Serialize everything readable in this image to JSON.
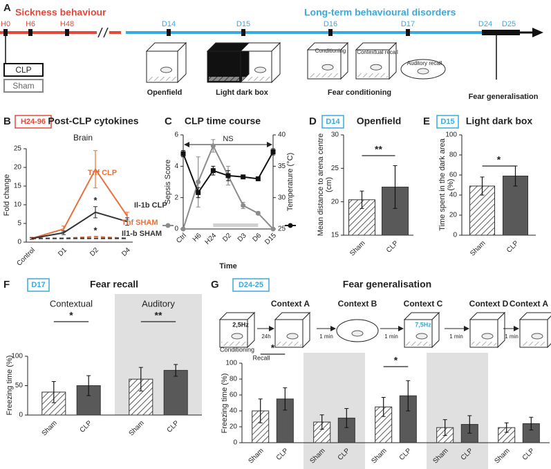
{
  "figure_a": {
    "label": "A",
    "phases": [
      "Sickness behaviour",
      "Long-term behavioural disorders"
    ],
    "timepoints": [
      "H0",
      "H6",
      "H48",
      "D14",
      "D15",
      "D16",
      "D17",
      "D24",
      "D25"
    ],
    "groups": [
      "CLP",
      "Sham"
    ],
    "tests": [
      "Openfield",
      "Light dark box",
      "Fear conditioning",
      "Fear generalisation"
    ],
    "test_phases": [
      "Conditioning",
      "Contextual recall",
      "Auditory recall"
    ]
  },
  "chart_data": [
    {
      "type": "line",
      "panel": "B",
      "badge": "H24-96",
      "badge_color": "#e5483b",
      "title": "Post-CLP cytokines",
      "subtitle": "Brain",
      "y_label": "Fold change",
      "categories": [
        "Control",
        "D1",
        "D2",
        "D4"
      ],
      "ylim": [
        0,
        25
      ],
      "yticks": [
        0,
        5,
        10,
        15,
        20,
        25
      ],
      "series": [
        {
          "name": "Tnf CLP",
          "color": "#e8703a",
          "dash": false,
          "values": [
            1,
            3.5,
            19.5,
            7
          ],
          "errors": [
            0.3,
            0.8,
            5,
            1
          ]
        },
        {
          "name": "Il-1b CLP",
          "color": "#333333",
          "dash": false,
          "values": [
            1,
            2.5,
            8,
            5.5
          ],
          "errors": [
            0.2,
            0.5,
            1.5,
            1
          ]
        },
        {
          "name": "Tnf SHAM",
          "color": "#e8703a",
          "dash": true,
          "values": [
            1,
            1,
            1.5,
            1
          ]
        },
        {
          "name": "Il1-b SHAM",
          "color": "#333333",
          "dash": true,
          "values": [
            1,
            1,
            1,
            1
          ]
        }
      ],
      "significance": [
        {
          "label": "*",
          "category": 2,
          "series": 1
        },
        {
          "label": "*",
          "category": 2,
          "series": 2
        }
      ]
    },
    {
      "type": "dual",
      "panel": "C",
      "title": "CLP time course",
      "x_label": "Time",
      "y_label": "Sepsis Score",
      "y2_label": "Temperature (°C)",
      "categories": [
        "Ctrl",
        "H6",
        "H24",
        "D2",
        "D3",
        "D6",
        "D15"
      ],
      "ylim": [
        0,
        6
      ],
      "yticks": [
        0,
        2,
        4,
        6
      ],
      "y2lim": [
        25,
        40
      ],
      "y2ticks": [
        25,
        30,
        35,
        40
      ],
      "annotation": "NS",
      "series": [
        {
          "color": "#8c8c8c",
          "values": [
            0,
            3,
            5.3,
            3.4,
            1.5,
            1,
            0
          ],
          "errors": [
            0,
            1.6,
            0.4,
            0.6,
            0.2,
            0.1,
            0
          ]
        },
        {
          "color": "#111111",
          "axis": "y2",
          "values": [
            37,
            30.8,
            34.3,
            33.5,
            33.3,
            33,
            37.3
          ],
          "errors": [
            0.5,
            0.8,
            0.7,
            0.8,
            0.3,
            0.3,
            0.5
          ]
        }
      ]
    },
    {
      "type": "bar",
      "panel": "D",
      "badge": "D14",
      "badge_color": "#3aa9dc",
      "title": "Openfield",
      "y_label": "Mean distance to arena centre (cm)",
      "ylim": [
        15,
        30
      ],
      "yticks": [
        15,
        20,
        25,
        30
      ],
      "series": [
        {
          "name": "Sham",
          "color": "#ffffff",
          "pattern": "hatch",
          "values": [
            20.3
          ],
          "errors": [
            1.3
          ]
        },
        {
          "name": "CLP",
          "color": "#595959",
          "values": [
            22.2
          ],
          "errors": [
            3.2
          ]
        }
      ],
      "significance": [
        {
          "label": "**"
        }
      ]
    },
    {
      "type": "bar",
      "panel": "E",
      "badge": "D15",
      "badge_color": "#3aa9dc",
      "title": "Light dark box",
      "y_label": "Time spent in the dark area (%)",
      "ylim": [
        0,
        100
      ],
      "yticks": [
        0,
        20,
        40,
        60,
        80,
        100
      ],
      "series": [
        {
          "name": "Sham",
          "color": "#ffffff",
          "pattern": "hatch",
          "values": [
            49
          ],
          "errors": [
            9
          ]
        },
        {
          "name": "CLP",
          "color": "#595959",
          "values": [
            59
          ],
          "errors": [
            10
          ]
        }
      ],
      "significance": [
        {
          "label": "*"
        }
      ]
    },
    {
      "type": "bar",
      "panel": "F",
      "badge": "D17",
      "badge_color": "#3aa9dc",
      "title": "Fear recall",
      "y_label": "Freezing time (%)",
      "groups": [
        "Contextual",
        "Auditory"
      ],
      "shaded": [
        1
      ],
      "ylim": [
        0,
        100
      ],
      "yticks": [
        0,
        50,
        100
      ],
      "series": [
        {
          "name": "Sham",
          "color": "#ffffff",
          "pattern": "hatch",
          "values": [
            39,
            61
          ],
          "errors": [
            18,
            20
          ]
        },
        {
          "name": "CLP",
          "color": "#595959",
          "values": [
            50,
            76
          ],
          "errors": [
            17,
            10
          ]
        }
      ],
      "significance": [
        {
          "label": "*",
          "group": 0
        },
        {
          "label": "**",
          "group": 1
        }
      ]
    },
    {
      "type": "bar",
      "panel": "G",
      "badge": "D24-25",
      "badge_color": "#3aa9dc",
      "title": "Fear generalisation",
      "y_label": "Freezing time (%)",
      "groups": [
        "Context A",
        "Context B",
        "Context C",
        "Context D",
        "Context A"
      ],
      "shaded": [
        1,
        3
      ],
      "ylim": [
        0,
        100
      ],
      "yticks": [
        0,
        20,
        40,
        60,
        80,
        100
      ],
      "protocol": {
        "steps": [
          "Conditioning",
          "Recall"
        ],
        "tones": [
          "2,5Hz",
          "7,5Hz"
        ],
        "intervals": [
          "24h",
          "1 min",
          "1 min",
          "1 min",
          "1 min"
        ]
      },
      "series": [
        {
          "name": "Sham",
          "color": "#ffffff",
          "pattern": "hatch",
          "values": [
            40,
            26,
            45,
            19,
            19
          ],
          "errors": [
            15,
            9,
            12,
            10,
            6
          ]
        },
        {
          "name": "CLP",
          "color": "#595959",
          "values": [
            55,
            31,
            59,
            23,
            24
          ],
          "errors": [
            14,
            12,
            19,
            11,
            8
          ]
        }
      ],
      "significance": [
        {
          "label": "*",
          "group": 0
        },
        {
          "label": "*",
          "group": 2
        }
      ]
    }
  ]
}
